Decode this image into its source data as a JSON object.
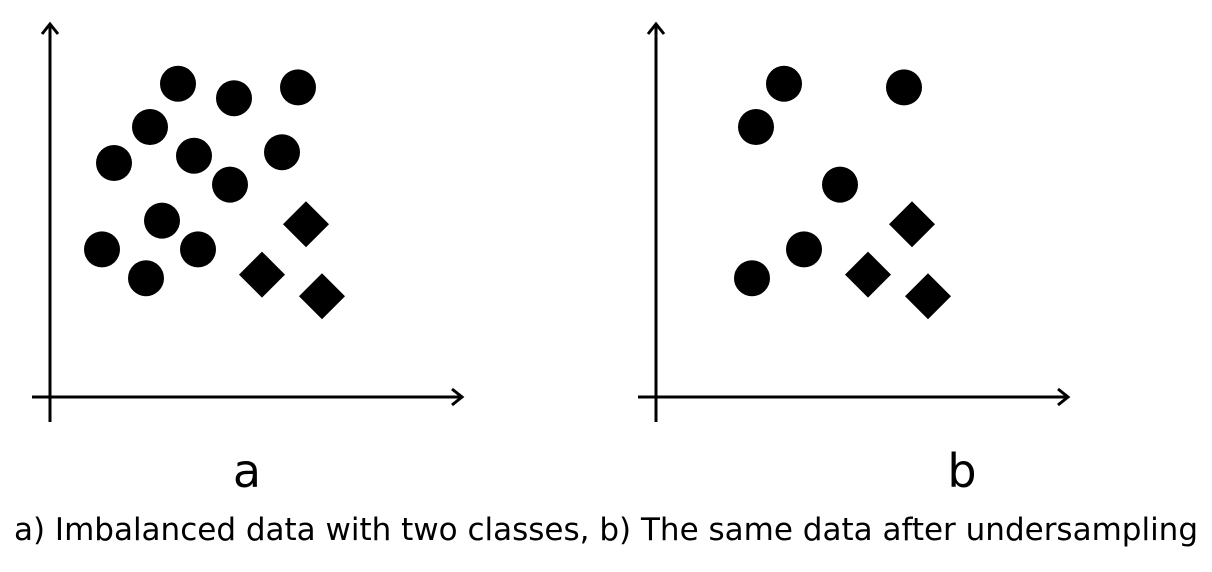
{
  "panels": {
    "a": {
      "label": "a"
    },
    "b": {
      "label": "b"
    }
  },
  "caption": "a) Imbalanced data with two classes, b) The same data after undersampling",
  "colors": {
    "marks": "#000000",
    "background": "#ffffff"
  },
  "chart_data": [
    {
      "type": "scatter",
      "panel": "a",
      "grid": false,
      "xlim": [
        0,
        10
      ],
      "ylim": [
        0,
        10
      ],
      "series": [
        {
          "marker": "circle",
          "points": [
            [
              3.2,
              8.7
            ],
            [
              4.6,
              8.3
            ],
            [
              6.2,
              8.6
            ],
            [
              2.5,
              7.5
            ],
            [
              1.6,
              6.5
            ],
            [
              3.6,
              6.7
            ],
            [
              5.8,
              6.8
            ],
            [
              4.5,
              5.9
            ],
            [
              2.8,
              4.9
            ],
            [
              1.3,
              4.1
            ],
            [
              3.7,
              4.1
            ],
            [
              2.4,
              3.3
            ]
          ]
        },
        {
          "marker": "diamond",
          "points": [
            [
              6.4,
              4.8
            ],
            [
              5.3,
              3.4
            ],
            [
              6.8,
              2.8
            ]
          ]
        }
      ]
    },
    {
      "type": "scatter",
      "panel": "b",
      "grid": false,
      "xlim": [
        0,
        10
      ],
      "ylim": [
        0,
        10
      ],
      "series": [
        {
          "marker": "circle",
          "points": [
            [
              3.2,
              8.7
            ],
            [
              6.2,
              8.6
            ],
            [
              2.5,
              7.5
            ],
            [
              4.6,
              5.9
            ],
            [
              3.7,
              4.1
            ],
            [
              2.4,
              3.3
            ]
          ]
        },
        {
          "marker": "diamond",
          "points": [
            [
              6.4,
              4.8
            ],
            [
              5.3,
              3.4
            ],
            [
              6.8,
              2.8
            ]
          ]
        }
      ]
    }
  ]
}
